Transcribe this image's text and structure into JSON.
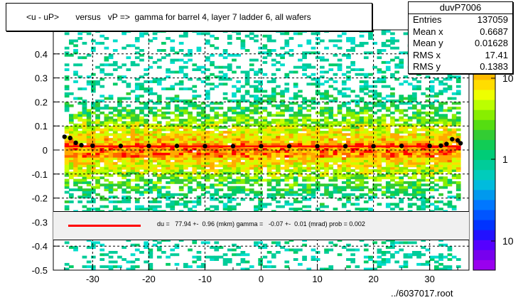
{
  "chart_data": {
    "type": "heatmap",
    "title": "<u - uP>       versus   vP =>  gamma for barrel 4, layer 7 ladder 6, all wafers",
    "xlabel": "",
    "ylabel": "",
    "xlim": [
      -37,
      37
    ],
    "ylim": [
      -0.5,
      0.5
    ],
    "x_ticks": [
      "-30",
      "-20",
      "-10",
      "0",
      "10",
      "20",
      "30"
    ],
    "y_ticks": [
      "-0.5",
      "-0.4",
      "-0.3",
      "-0.2",
      "-0.1",
      "0",
      "0.1",
      "0.2",
      "0.3",
      "0.4"
    ],
    "z_scale": "log",
    "z_ticks": [
      "10",
      "1",
      "10"
    ],
    "z_tick_values": [
      10,
      1,
      0.1
    ],
    "grid": true,
    "profile_points": [
      {
        "x": -35,
        "y": 0.055
      },
      {
        "x": -34,
        "y": 0.05
      },
      {
        "x": -33,
        "y": 0.03
      },
      {
        "x": -32,
        "y": 0.02
      },
      {
        "x": -30,
        "y": 0.018
      },
      {
        "x": -25,
        "y": 0.017
      },
      {
        "x": -20,
        "y": 0.017
      },
      {
        "x": -15,
        "y": 0.017
      },
      {
        "x": -10,
        "y": 0.016
      },
      {
        "x": -5,
        "y": 0.016
      },
      {
        "x": 0,
        "y": 0.016
      },
      {
        "x": 5,
        "y": 0.016
      },
      {
        "x": 10,
        "y": 0.016
      },
      {
        "x": 15,
        "y": 0.016
      },
      {
        "x": 20,
        "y": 0.016
      },
      {
        "x": 25,
        "y": 0.017
      },
      {
        "x": 30,
        "y": 0.017
      },
      {
        "x": 32,
        "y": 0.018
      },
      {
        "x": 33,
        "y": 0.025
      },
      {
        "x": 34,
        "y": 0.045
      },
      {
        "x": 35,
        "y": 0.04
      },
      {
        "x": 35.5,
        "y": 0.028
      }
    ],
    "fit_line": {
      "x": [
        -35,
        35
      ],
      "y": [
        0.015,
        0.015
      ]
    }
  },
  "stats": {
    "name": "duvP7006",
    "rows": [
      {
        "label": "Entries",
        "value": "137059"
      },
      {
        "label": "Mean x",
        "value": "0.6687"
      },
      {
        "label": "Mean y",
        "value": "0.01628"
      },
      {
        "label": "RMS x",
        "value": "17.41"
      },
      {
        "label": "RMS y",
        "value": "0.1383"
      }
    ]
  },
  "fit_text": "du =   77.94 +-  0.96 (mkm) gamma =   -0.07 +-  0.01 (mrad) prob = 0.002",
  "footer": "../6037017.root",
  "colors": {
    "fit_line": "#ff0000",
    "profile": "#000000"
  }
}
